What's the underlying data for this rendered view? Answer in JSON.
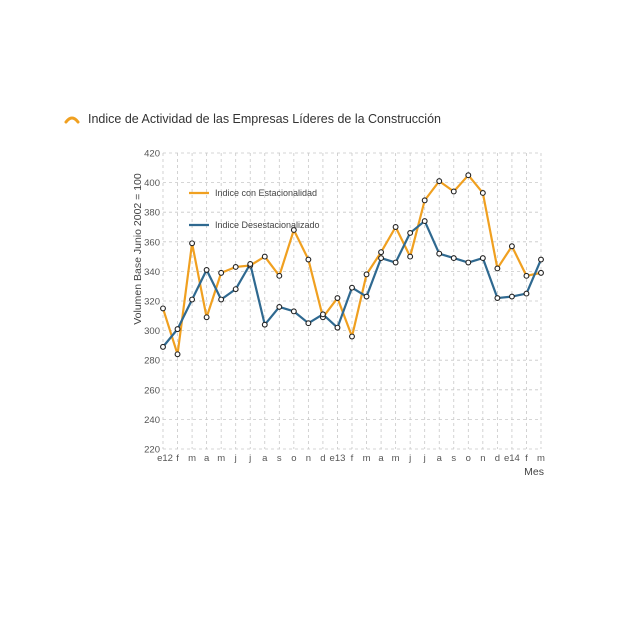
{
  "chart_data": {
    "type": "line",
    "title": "Indice de Actividad de las Empresas Líderes de la Construcción",
    "xlabel": "Mes",
    "ylabel": "Volumen Base Junio 2002 = 100",
    "ylim": [
      220,
      420
    ],
    "yticks": [
      220,
      240,
      260,
      280,
      300,
      320,
      340,
      360,
      380,
      400,
      420
    ],
    "grid": true,
    "legend_position": "top-left",
    "categories": [
      "e12",
      "f",
      "m",
      "a",
      "m",
      "j",
      "j",
      "a",
      "s",
      "o",
      "n",
      "d",
      "e13",
      "f",
      "m",
      "a",
      "m",
      "j",
      "j",
      "a",
      "s",
      "o",
      "n",
      "d",
      "e14",
      "f",
      "m"
    ],
    "series": [
      {
        "name": "Indice con Estacionalidad",
        "color": "#f0a020",
        "values": [
          315,
          284,
          359,
          309,
          339,
          343,
          344,
          350,
          337,
          368,
          348,
          309,
          322,
          296,
          338,
          353,
          370,
          350,
          388,
          401,
          394,
          405,
          393,
          342,
          357,
          337,
          339
        ]
      },
      {
        "name": "Indice Desestacionalizado",
        "color": "#2f6990",
        "values": [
          289,
          301,
          321,
          341,
          321,
          328,
          345,
          304,
          316,
          313,
          305,
          311,
          302,
          329,
          323,
          349,
          346,
          366,
          374,
          352,
          349,
          346,
          349,
          322,
          323,
          325,
          348
        ]
      }
    ]
  }
}
